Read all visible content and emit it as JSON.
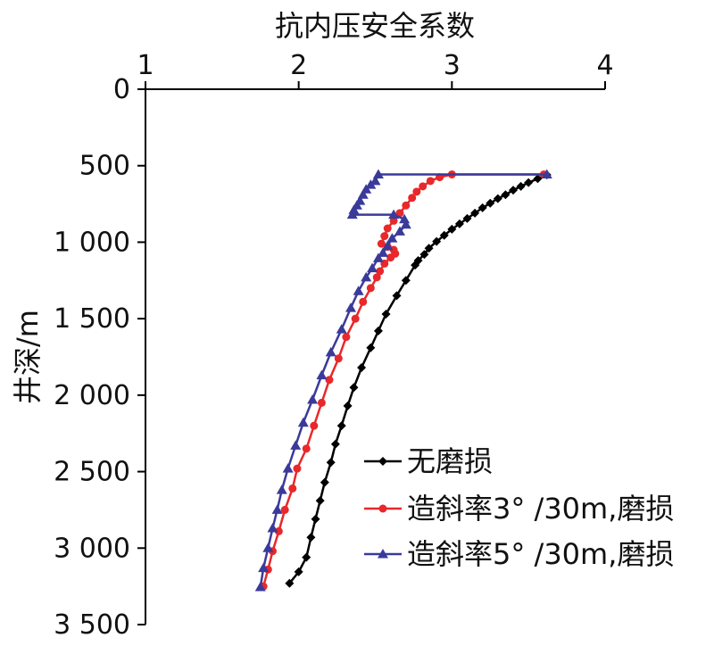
{
  "chart_data": {
    "type": "line",
    "orientation": "depth-down",
    "xlabel": "抗内压安全系数",
    "ylabel": "井深/m",
    "x_axis_position": "top",
    "xlim": [
      1,
      4
    ],
    "ylim": [
      0,
      3500
    ],
    "x_ticks": [
      "1",
      "2",
      "3",
      "4"
    ],
    "y_ticks": [
      "0",
      "500",
      "1 000",
      "1 500",
      "2 000",
      "2 500",
      "3 000",
      "3 500"
    ],
    "grid": false,
    "legend_position": "bottom-right",
    "series": [
      {
        "name": "无磨损",
        "color": "#000000",
        "marker": "diamond",
        "points": [
          [
            3.62,
            560
          ],
          [
            3.56,
            585
          ],
          [
            3.5,
            610
          ],
          [
            3.45,
            635
          ],
          [
            3.4,
            660
          ],
          [
            3.35,
            690
          ],
          [
            3.3,
            715
          ],
          [
            3.25,
            745
          ],
          [
            3.2,
            775
          ],
          [
            3.15,
            810
          ],
          [
            3.1,
            845
          ],
          [
            3.05,
            880
          ],
          [
            3.0,
            915
          ],
          [
            2.95,
            955
          ],
          [
            2.9,
            995
          ],
          [
            2.85,
            1040
          ],
          [
            2.82,
            1080
          ],
          [
            2.78,
            1120
          ],
          [
            2.76,
            1150
          ],
          [
            2.7,
            1250
          ],
          [
            2.64,
            1350
          ],
          [
            2.57,
            1470
          ],
          [
            2.52,
            1580
          ],
          [
            2.47,
            1690
          ],
          [
            2.41,
            1820
          ],
          [
            2.36,
            1950
          ],
          [
            2.32,
            2070
          ],
          [
            2.28,
            2200
          ],
          [
            2.24,
            2320
          ],
          [
            2.21,
            2440
          ],
          [
            2.17,
            2570
          ],
          [
            2.14,
            2690
          ],
          [
            2.11,
            2810
          ],
          [
            2.08,
            2930
          ],
          [
            2.05,
            3060
          ],
          [
            2.0,
            3155
          ],
          [
            1.94,
            3230
          ]
        ]
      },
      {
        "name": "造斜率3° /30m,磨损",
        "color": "#e8282a",
        "marker": "circle",
        "points": [
          [
            3.6,
            557
          ],
          [
            3.0,
            557
          ],
          [
            2.92,
            575
          ],
          [
            2.86,
            600
          ],
          [
            2.81,
            635
          ],
          [
            2.77,
            670
          ],
          [
            2.74,
            710
          ],
          [
            2.7,
            760
          ],
          [
            2.66,
            810
          ],
          [
            2.62,
            860
          ],
          [
            2.58,
            910
          ],
          [
            2.56,
            960
          ],
          [
            2.54,
            1010
          ],
          [
            2.58,
            1030
          ],
          [
            2.62,
            1050
          ],
          [
            2.63,
            1075
          ],
          [
            2.6,
            1100
          ],
          [
            2.56,
            1140
          ],
          [
            2.53,
            1190
          ],
          [
            2.51,
            1230
          ],
          [
            2.47,
            1300
          ],
          [
            2.42,
            1390
          ],
          [
            2.37,
            1500
          ],
          [
            2.31,
            1620
          ],
          [
            2.26,
            1760
          ],
          [
            2.2,
            1900
          ],
          [
            2.15,
            2050
          ],
          [
            2.1,
            2200
          ],
          [
            2.05,
            2350
          ],
          [
            1.99,
            2480
          ],
          [
            1.96,
            2610
          ],
          [
            1.91,
            2750
          ],
          [
            1.87,
            2890
          ],
          [
            1.83,
            3020
          ],
          [
            1.8,
            3140
          ],
          [
            1.77,
            3250
          ]
        ]
      },
      {
        "name": "造斜率5° /30m,磨损",
        "color": "#3a3a9a",
        "marker": "triangle",
        "points": [
          [
            3.62,
            557
          ],
          [
            2.52,
            557
          ],
          [
            2.5,
            600
          ],
          [
            2.47,
            625
          ],
          [
            2.44,
            655
          ],
          [
            2.42,
            690
          ],
          [
            2.4,
            730
          ],
          [
            2.38,
            760
          ],
          [
            2.36,
            790
          ],
          [
            2.35,
            820
          ],
          [
            2.62,
            820
          ],
          [
            2.69,
            850
          ],
          [
            2.7,
            885
          ],
          [
            2.66,
            930
          ],
          [
            2.61,
            975
          ],
          [
            2.58,
            1025
          ],
          [
            2.55,
            1070
          ],
          [
            2.52,
            1105
          ],
          [
            2.48,
            1170
          ],
          [
            2.44,
            1230
          ],
          [
            2.39,
            1320
          ],
          [
            2.34,
            1430
          ],
          [
            2.28,
            1570
          ],
          [
            2.21,
            1720
          ],
          [
            2.15,
            1870
          ],
          [
            2.09,
            2030
          ],
          [
            2.03,
            2180
          ],
          [
            1.98,
            2330
          ],
          [
            1.93,
            2480
          ],
          [
            1.89,
            2620
          ],
          [
            1.86,
            2750
          ],
          [
            1.83,
            2870
          ],
          [
            1.8,
            3000
          ],
          [
            1.77,
            3130
          ],
          [
            1.75,
            3255
          ]
        ]
      }
    ]
  }
}
